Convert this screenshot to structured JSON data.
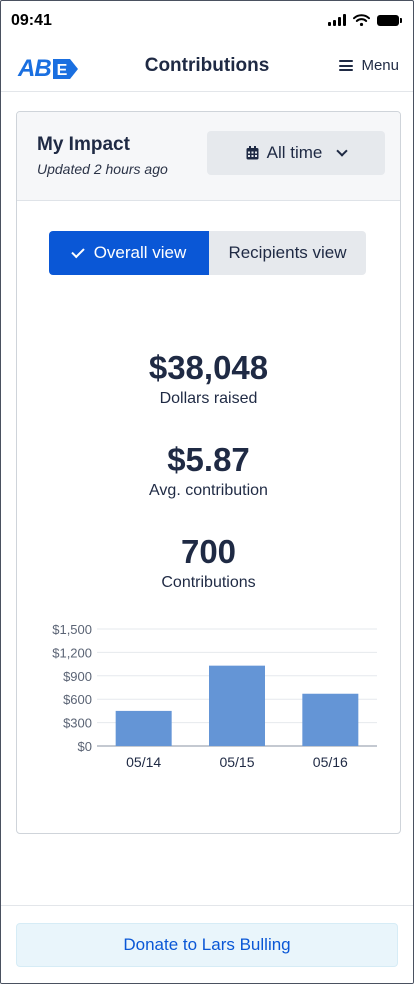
{
  "status_bar": {
    "time": "09:41",
    "icons": [
      "signal-icon",
      "wifi-icon",
      "battery-icon"
    ]
  },
  "header": {
    "logo_text": "AB",
    "logo_mark": "E",
    "title": "Contributions",
    "menu_label": "Menu",
    "brand_color": "#1a6fe0"
  },
  "impact": {
    "title": "My Impact",
    "updated": "Updated 2 hours ago",
    "range_label": "All time",
    "views": {
      "overall": "Overall view",
      "recipients": "Recipients view",
      "active": "overall"
    },
    "stats": [
      {
        "value": "$38,048",
        "label": "Dollars raised"
      },
      {
        "value": "$5.87",
        "label": "Avg. contribution"
      },
      {
        "value": "700",
        "label": "Contributions"
      }
    ]
  },
  "chart_data": {
    "type": "bar",
    "categories": [
      "05/14",
      "05/15",
      "05/16"
    ],
    "values": [
      450,
      1030,
      670
    ],
    "yticks": [
      0,
      300,
      600,
      900,
      1200,
      1500
    ],
    "ytick_labels": [
      "$0",
      "$300",
      "$600",
      "$900",
      "$1,200",
      "$1,500"
    ],
    "ylim": [
      0,
      1500
    ],
    "title": "",
    "xlabel": "",
    "ylabel": "",
    "bar_color": "#6495d6",
    "grid": true
  },
  "footer": {
    "donate_label": "Donate to Lars Bulling",
    "accent": "#0a57d6"
  }
}
